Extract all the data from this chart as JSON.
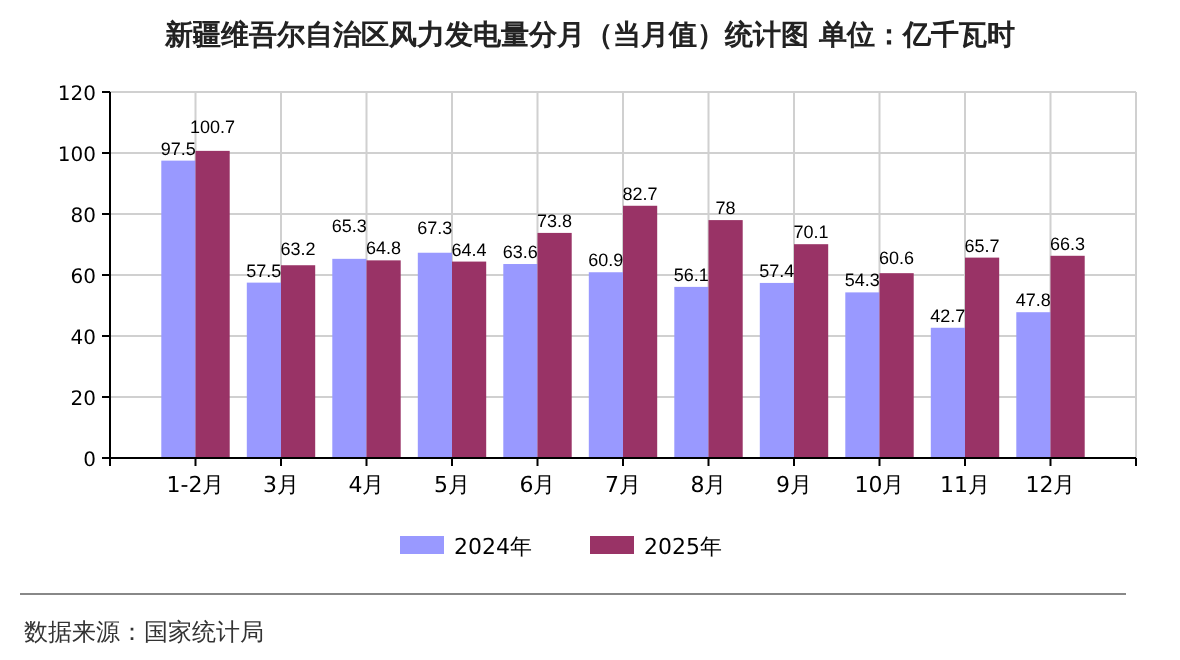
{
  "chart_data": {
    "type": "bar",
    "title": "新疆维吾尔自治区风力发电量分月（当月值）统计图 单位：亿千瓦时",
    "categories": [
      "1-2月",
      "3月",
      "4月",
      "5月",
      "6月",
      "7月",
      "8月",
      "9月",
      "10月",
      "11月",
      "12月"
    ],
    "series": [
      {
        "name": "2024年",
        "color": "#9999ff",
        "values": [
          97.5,
          57.5,
          65.3,
          67.3,
          63.6,
          60.9,
          56.1,
          57.4,
          54.3,
          42.7,
          47.8
        ]
      },
      {
        "name": "2025年",
        "color": "#993366",
        "values": [
          100.7,
          63.2,
          64.8,
          64.4,
          73.8,
          82.7,
          78,
          70.1,
          60.6,
          65.7,
          66.3
        ]
      }
    ],
    "ylim": [
      0,
      120
    ],
    "yticks": [
      0,
      20,
      40,
      60,
      80,
      100,
      120
    ],
    "grid": true,
    "legend": "bottom",
    "data_labels": true,
    "annotations": [
      "数据来源：国家统计局"
    ]
  }
}
